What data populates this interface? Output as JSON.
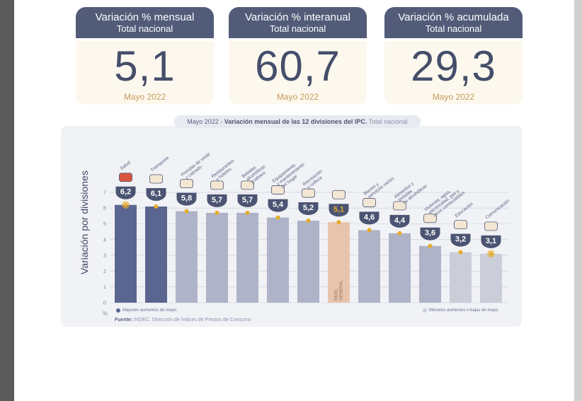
{
  "kpis": [
    {
      "title": "Variación % mensual",
      "subtitle": "Total nacional",
      "value": "5,1",
      "date": "Mayo 2022"
    },
    {
      "title": "Variación % interanual",
      "subtitle": "Total nacional",
      "value": "60,7",
      "date": "Mayo 2022"
    },
    {
      "title": "Variación % acumulada",
      "subtitle": "Total nacional",
      "value": "29,3",
      "date": "Mayo 2022"
    }
  ],
  "chart_title": {
    "prefix": "Mayo 2022 - ",
    "main": "Variación mensual de las 12 divisiones del IPC.",
    "suffix": " Total nacional"
  },
  "legend": {
    "higher": "Mayores aumentos de mayo.",
    "lower": "Menores aumentos o bajas de mayo."
  },
  "percent_symbol": "%",
  "source": {
    "label": "Fuente:",
    "text": " INDEC. Dirección de Índices de Precios de Consumo"
  },
  "colors": {
    "header": "#525c79",
    "high_bar": "#5b6690",
    "mid_bar": "#aeb3c7",
    "low_bar": "#cbced9",
    "general_bar": "#e9c4ac",
    "badge": "#4b5472",
    "dot": "#e6ac2a"
  },
  "chart_data": {
    "type": "bar",
    "ylabel": "Variación por divisiones",
    "ylim": [
      0,
      7
    ],
    "yticks": [
      0,
      1,
      2,
      3,
      4,
      5,
      6,
      7
    ],
    "grid": true,
    "categories": [
      "Salud",
      "Transporte",
      "Prendas de vestir y calzado",
      "Restaurantes y hoteles",
      "Bebidas alcohólicas y tabaco",
      "Equipamiento y mantenimiento del hogar",
      "Recreación y cultura",
      "Nivel general",
      "Bienes y servicios varios",
      "Alimentos y bebidas no alcohólicas",
      "Vivienda, agua, electricidad, gas y otros combustibles",
      "Educación",
      "Comunicación"
    ],
    "labels": [
      "6,2",
      "6,1",
      "5,8",
      "5,7",
      "5,7",
      "5,4",
      "5,2",
      "5,1",
      "4,6",
      "4,4",
      "3,6",
      "3,2",
      "3,1"
    ],
    "values": [
      6.2,
      6.1,
      5.8,
      5.7,
      5.7,
      5.4,
      5.2,
      5.1,
      4.6,
      4.4,
      3.6,
      3.2,
      3.1
    ],
    "groups": [
      "high",
      "high",
      "mid",
      "mid",
      "mid",
      "mid",
      "mid",
      "general",
      "mid",
      "mid",
      "mid",
      "low",
      "low"
    ],
    "category_label_lines": [
      [
        "Salud"
      ],
      [
        "Transporte"
      ],
      [
        "Prendas de vestir",
        "y calzado"
      ],
      [
        "Restaurantes",
        "y hoteles"
      ],
      [
        "Bebidas",
        "alcohólicas",
        "y tabaco"
      ],
      [
        "Equipamiento",
        "y mantenimiento",
        "del hogar"
      ],
      [
        "Recreación",
        "y cultura"
      ],
      [],
      [
        "Bienes y",
        "servicios varios"
      ],
      [
        "Alimentos y",
        "bebidas",
        "no alcohólicas"
      ],
      [
        "Vivienda, agua,",
        "electricidad, gas y",
        "otros combustibles"
      ],
      [
        "Educación"
      ],
      [
        "Comunicación"
      ]
    ],
    "inbar_label": [
      "NIVEL",
      "GENERAL"
    ],
    "icons": [
      "first-aid-kit-icon",
      "bus-car-icon",
      "clothing-icon",
      "restaurant-icon",
      "drinks-icon",
      "home-appliance-icon",
      "recreation-icon",
      "general-basket-icon",
      "tools-goods-icon",
      "food-icon",
      "lightbulb-icon",
      "books-icon",
      "phone-icon"
    ]
  }
}
